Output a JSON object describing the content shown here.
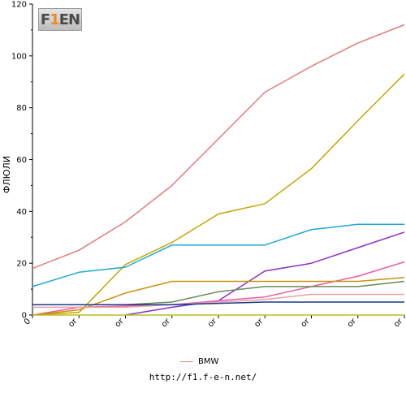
{
  "chart_data": {
    "type": "line",
    "ylabel": "ФЛЮЛИ",
    "x": [
      "0",
      "or",
      "or",
      "or",
      "or",
      "or",
      "or",
      "or",
      "or"
    ],
    "ylim": [
      0,
      120
    ],
    "yticks": [
      0,
      20,
      40,
      60,
      80,
      100,
      120
    ],
    "grid": false,
    "legend": "bottom-center",
    "series": [
      {
        "name": "BMW",
        "color": "#e27c7c",
        "values": [
          18,
          25,
          36,
          50,
          68,
          86,
          96,
          105,
          112
        ]
      },
      {
        "color": "#c8a400",
        "values": [
          0,
          1,
          19.5,
          28,
          39,
          43,
          56.5,
          75,
          93
        ]
      },
      {
        "color": "#1ca9d8",
        "values": [
          11,
          16.5,
          18.5,
          27,
          27,
          27,
          33,
          35,
          35
        ]
      },
      {
        "color": "#8a2fc9",
        "values": [
          null,
          null,
          0,
          3,
          5.5,
          17,
          20,
          26,
          32
        ]
      },
      {
        "color": "#ef5aa8",
        "values": [
          0,
          3,
          3.5,
          4,
          5.5,
          7,
          11,
          15,
          20.5
        ]
      },
      {
        "color": "#c9920c",
        "values": [
          0,
          2,
          8.5,
          13,
          13,
          13,
          13,
          13,
          14.5
        ]
      },
      {
        "color": "#6a8a5a",
        "values": [
          4,
          4,
          4,
          5,
          9,
          11,
          11,
          11,
          13
        ]
      },
      {
        "color": "#e8a0a0",
        "values": [
          3,
          3,
          3,
          4,
          5,
          6,
          8,
          8,
          8
        ]
      },
      {
        "color": "#1a3a8a",
        "values": [
          4,
          4,
          4,
          4,
          4.5,
          5,
          5,
          5,
          5
        ]
      },
      {
        "color": "#b8c020",
        "values": [
          0,
          0,
          0,
          0,
          0,
          0,
          0,
          0,
          0
        ]
      }
    ]
  },
  "legend": {
    "label": "BMW",
    "color": "#e27c7c"
  },
  "source": "http://f1.f-e-n.net/",
  "logo": {
    "prefix": "F",
    "digit": "1",
    "suffix": "EN"
  }
}
